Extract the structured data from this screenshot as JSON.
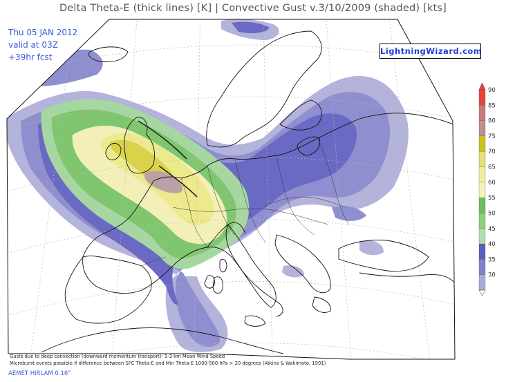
{
  "header": {
    "title": "Delta Theta-E (thick lines) [K]  |  Convective Gust v.3/10/2009 (shaded) [kts]"
  },
  "forecast_info": {
    "date": "Thu 05 JAN 2012",
    "valid": "valid at 03Z",
    "lead": "+39hr fcst"
  },
  "logo": {
    "text": "LightningWizard.com"
  },
  "footnote": {
    "line1": "Gusts due to deep convection (downward momentum transport): 1-3 km Mean Wind Speed",
    "line2": "Microburst events possible if difference between SFC Theta-E and Min Theta-E 1000-500 hPa > 20 degrees (Atkins & Wakimoto, 1991)"
  },
  "credit": {
    "text": "AEMET HIRLAM 0.16°"
  },
  "legend": {
    "levels": [
      "90",
      "85",
      "80",
      "75",
      "70",
      "65",
      "60",
      "55",
      "50",
      "45",
      "40",
      "35",
      "30"
    ],
    "colors": [
      "#e8443a",
      "#c87a7a",
      "#bf9090",
      "#c9c31a",
      "#e8e070",
      "#f0ee9a",
      "#f4f2bd",
      "#6cbf5e",
      "#8ccf7c",
      "#b0ddb0",
      "#5c5cc0",
      "#8080cc",
      "#aaaad8"
    ]
  },
  "map": {
    "shading_colors": {
      "kt30": "#b3b3db",
      "kt35": "#8f8fd0",
      "kt40": "#6a6ac4",
      "kt50": "#a6d7a0",
      "kt55": "#7fc66f",
      "kt60": "#f2f0b8",
      "kt65": "#ede98d",
      "kt70": "#d9d24a",
      "kt80": "#bba0a6"
    }
  }
}
